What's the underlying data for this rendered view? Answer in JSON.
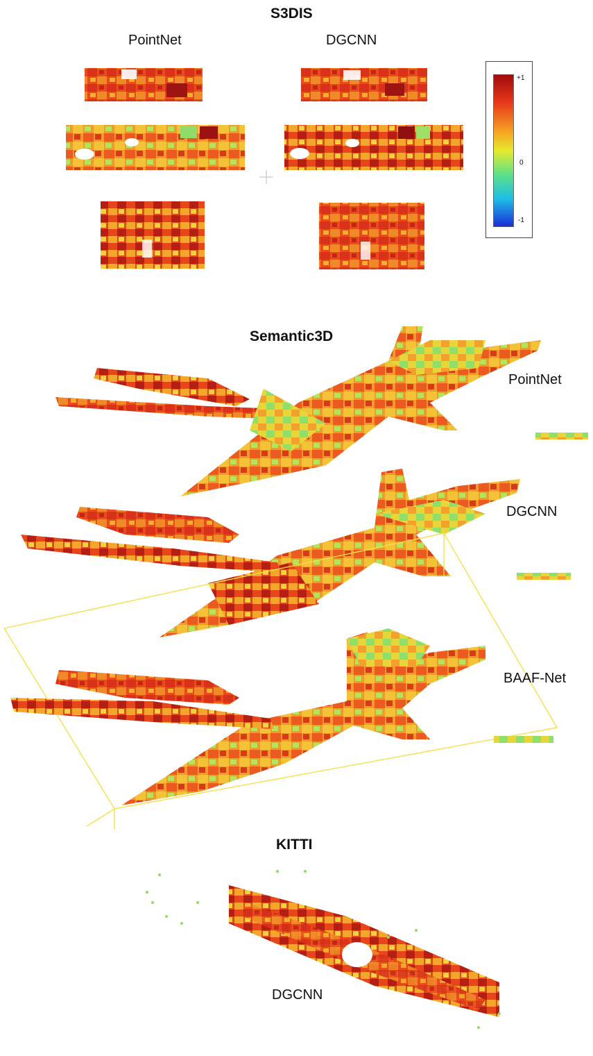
{
  "s3dis": {
    "title": "S3DIS",
    "col_left_label": "PointNet",
    "col_right_label": "DGCNN"
  },
  "colorbar": {
    "max_label": "+1",
    "mid_label": "0",
    "min_label": "-1",
    "colors": [
      "#a10c0c",
      "#e8361b",
      "#f5a623",
      "#e6ea2c",
      "#5de08a",
      "#1dbde6",
      "#1b2fd8"
    ]
  },
  "semantic3d": {
    "title": "Semantic3D",
    "row1_label": "PointNet",
    "row2_label": "DGCNN",
    "row3_label": "BAAF-Net"
  },
  "kitti": {
    "title": "KITTI",
    "label": "DGCNN"
  }
}
